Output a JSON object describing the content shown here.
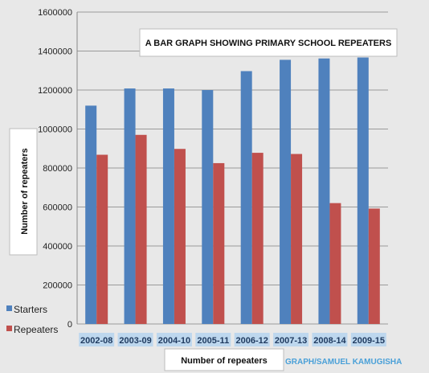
{
  "chart_data": {
    "type": "bar",
    "title": "A BAR GRAPH  SHOWING PRIMARY  SCHOOL REPEATERS",
    "xlabel": "Number of repeaters",
    "ylabel": "Number of repeaters",
    "credit": "GRAPH/SAMUEL KAMUGISHA",
    "categories": [
      "2002-08",
      "2003-09",
      "2004-10",
      "2005-11",
      "2006-12",
      "2007-13",
      "2008-14",
      "2009-15"
    ],
    "series": [
      {
        "name": "Starters",
        "color": "#4f81bd",
        "values": [
          1120000,
          1208000,
          1208000,
          1200000,
          1297000,
          1355000,
          1362000,
          1367000
        ]
      },
      {
        "name": "Repeaters",
        "color": "#c0504d",
        "values": [
          868000,
          970000,
          898000,
          825000,
          878000,
          872000,
          620000,
          592000
        ]
      }
    ],
    "yticks": [
      "0",
      "200000",
      "400000",
      "600000",
      "800000",
      "1000000",
      "1200000",
      "1400000",
      "1600000"
    ],
    "ylim": [
      0,
      1600000
    ],
    "grid": true,
    "legend_position": "left",
    "colors": {
      "plot_background": "#e8e8e8",
      "gridline": "#9a9a9a",
      "category_label_bg": "#bdd7ee"
    }
  }
}
